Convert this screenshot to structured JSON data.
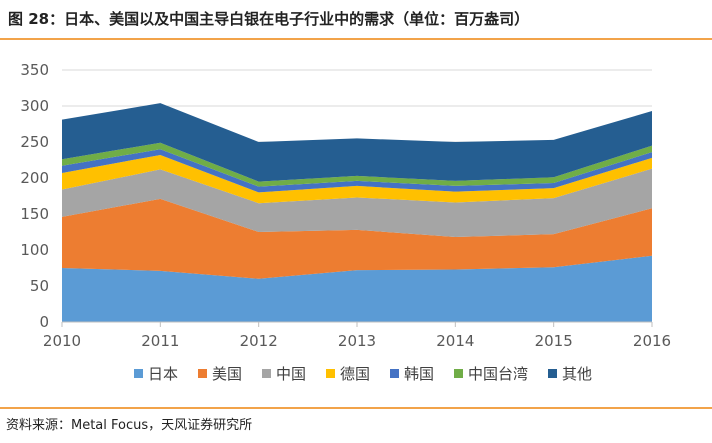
{
  "header": {
    "title": "图 28：日本、美国以及中国主导白银在电子行业中的需求（单位：百万盎司）"
  },
  "footer": {
    "source": "资料来源：Metal Focus，天风证券研究所"
  },
  "colors": {
    "rule": "#f2a34a",
    "grid": "#d9d9d9",
    "axis": "#bfbfbf"
  },
  "chart_data": {
    "type": "area",
    "stacked": true,
    "title": "日本、美国以及中国主导白银在电子行业中的需求（单位：百万盎司）",
    "xlabel": "",
    "ylabel": "",
    "x": [
      "2010",
      "2011",
      "2012",
      "2013",
      "2014",
      "2015",
      "2016"
    ],
    "ylim": [
      0,
      350
    ],
    "yticks": [
      "0",
      "50",
      "100",
      "150",
      "200",
      "250",
      "300",
      "350"
    ],
    "grid": true,
    "legend_position": "bottom",
    "series": [
      {
        "name": "日本",
        "color": "#5b9bd5",
        "values": [
          75,
          71,
          60,
          72,
          73,
          76,
          92
        ]
      },
      {
        "name": "美国",
        "color": "#ed7d31",
        "values": [
          71,
          100,
          65,
          56,
          45,
          46,
          66
        ]
      },
      {
        "name": "中国",
        "color": "#a5a5a5",
        "values": [
          38,
          41,
          40,
          45,
          48,
          50,
          55
        ]
      },
      {
        "name": "德国",
        "color": "#ffc000",
        "values": [
          23,
          20,
          15,
          16,
          15,
          14,
          15
        ]
      },
      {
        "name": "韩国",
        "color": "#4472c4",
        "values": [
          10,
          8,
          8,
          7,
          8,
          7,
          8
        ]
      },
      {
        "name": "中国台湾",
        "color": "#70ad47",
        "values": [
          9,
          9,
          7,
          7,
          7,
          8,
          9
        ]
      },
      {
        "name": "其他",
        "color": "#255e91",
        "values": [
          55,
          55,
          55,
          52,
          54,
          52,
          48
        ]
      }
    ]
  }
}
